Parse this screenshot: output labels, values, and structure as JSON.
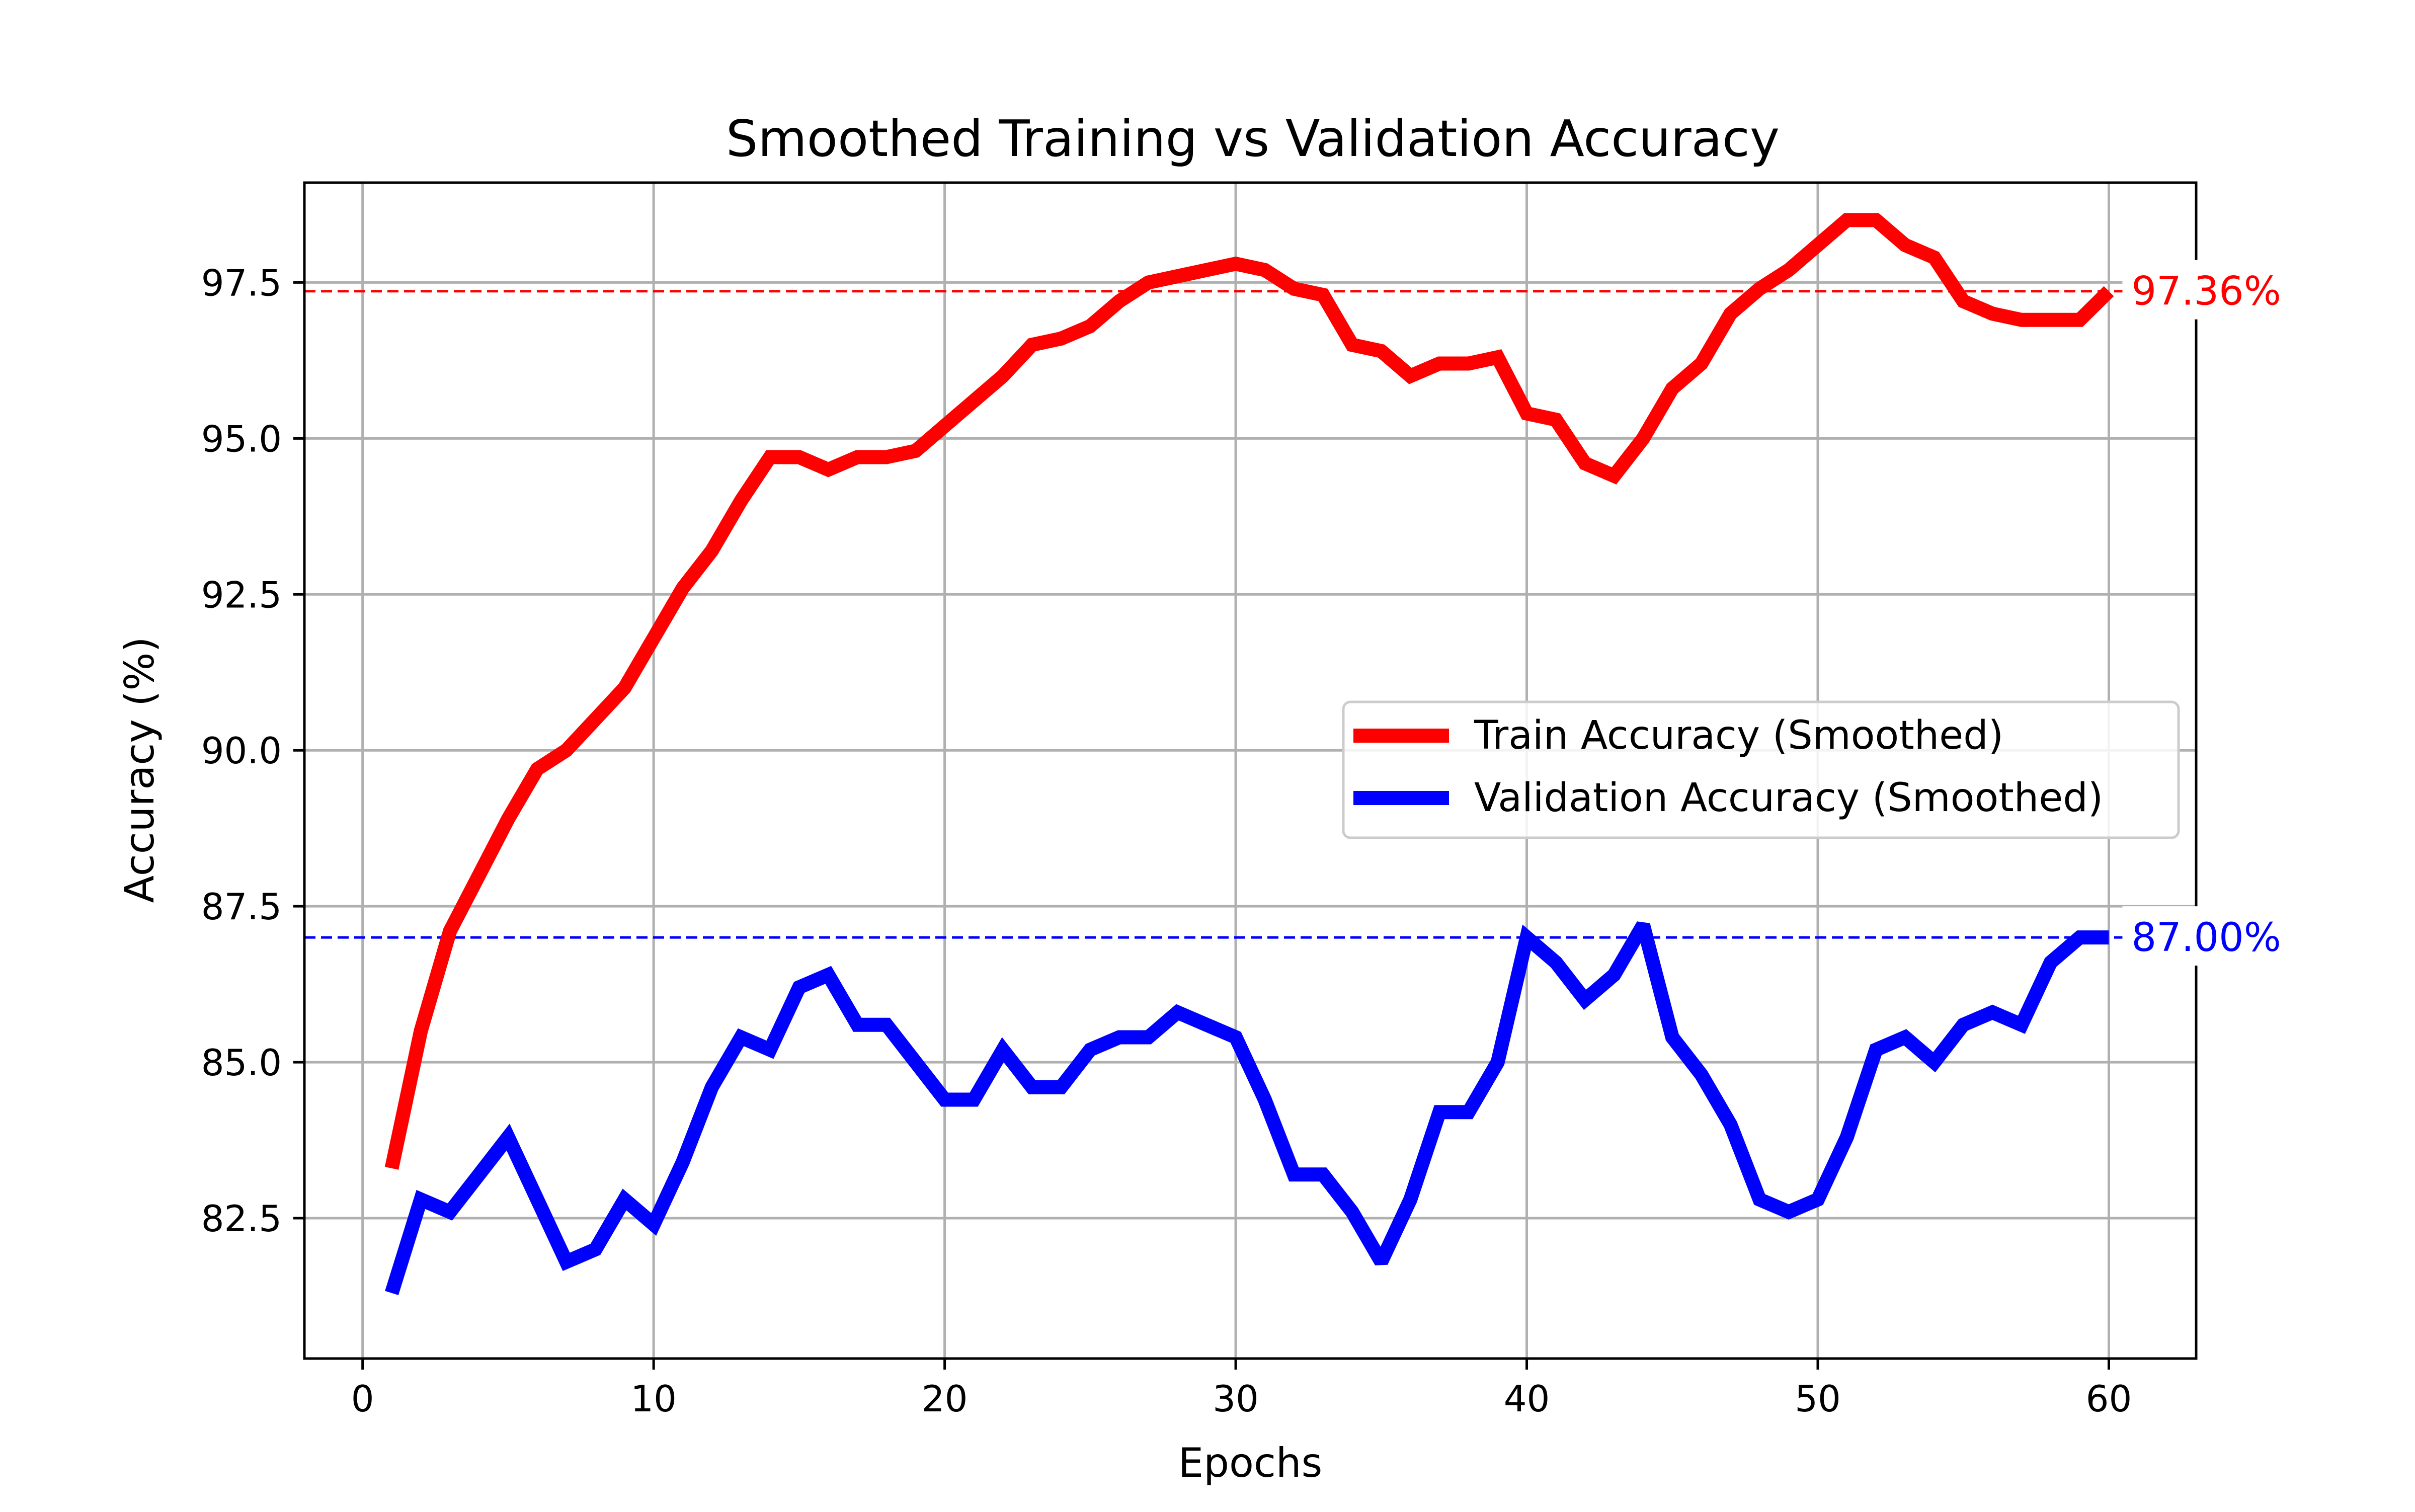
{
  "chart_data": {
    "type": "line",
    "title": "Smoothed Training vs Validation Accuracy",
    "xlabel": "Epochs",
    "ylabel": "Accuracy (%)",
    "xlim": [
      -2,
      63
    ],
    "ylim": [
      80.25,
      99.1
    ],
    "xticks": [
      0,
      10,
      20,
      30,
      40,
      50,
      60
    ],
    "xtick_labels": [
      "0",
      "10",
      "20",
      "30",
      "40",
      "50",
      "60"
    ],
    "yticks": [
      82.5,
      85.0,
      87.5,
      90.0,
      92.5,
      95.0,
      97.5
    ],
    "ytick_labels": [
      "82.5",
      "85.0",
      "87.5",
      "90.0",
      "92.5",
      "95.0",
      "97.5"
    ],
    "grid": true,
    "legend_position": "center-right",
    "x": [
      1,
      2,
      3,
      4,
      5,
      6,
      7,
      8,
      9,
      10,
      11,
      12,
      13,
      14,
      15,
      16,
      17,
      18,
      19,
      20,
      21,
      22,
      23,
      24,
      25,
      26,
      27,
      28,
      29,
      30,
      31,
      32,
      33,
      34,
      35,
      36,
      37,
      38,
      39,
      40,
      41,
      42,
      43,
      44,
      45,
      46,
      47,
      48,
      49,
      50,
      51,
      52,
      53,
      54,
      55,
      56,
      57,
      58,
      59,
      60
    ],
    "series": [
      {
        "name": "Train Accuracy (Smoothed)",
        "color": "#ff0000",
        "values": [
          83.3,
          85.5,
          87.1,
          88.0,
          88.9,
          89.7,
          90.0,
          90.5,
          91.0,
          91.8,
          92.6,
          93.2,
          94.0,
          94.7,
          94.7,
          94.5,
          94.7,
          94.7,
          94.8,
          95.2,
          95.6,
          96.0,
          96.5,
          96.6,
          96.8,
          97.2,
          97.5,
          97.6,
          97.7,
          97.8,
          97.7,
          97.4,
          97.3,
          96.5,
          96.4,
          96.0,
          96.2,
          96.2,
          96.3,
          95.4,
          95.3,
          94.6,
          94.4,
          95.0,
          95.8,
          96.2,
          97.0,
          97.4,
          97.7,
          98.1,
          98.5,
          98.5,
          98.1,
          97.9,
          97.2,
          97.0,
          96.9,
          96.9,
          96.9,
          97.36
        ]
      },
      {
        "name": "Validation Accuracy (Smoothed)",
        "color": "#0000ff",
        "values": [
          81.3,
          82.8,
          82.6,
          83.2,
          83.8,
          82.8,
          81.8,
          82.0,
          82.8,
          82.4,
          83.4,
          84.6,
          85.4,
          85.2,
          86.2,
          86.4,
          85.6,
          85.6,
          85.0,
          84.4,
          84.4,
          85.2,
          84.6,
          84.6,
          85.2,
          85.4,
          85.4,
          85.8,
          85.6,
          85.4,
          84.4,
          83.2,
          83.2,
          82.6,
          81.8,
          82.8,
          84.2,
          84.2,
          85.0,
          87.0,
          86.6,
          86.0,
          86.4,
          87.2,
          85.4,
          84.8,
          84.0,
          82.8,
          82.6,
          82.8,
          83.8,
          85.2,
          85.4,
          85.0,
          85.6,
          85.8,
          85.6,
          86.6,
          87.0,
          87.0
        ]
      }
    ],
    "reference_lines": [
      {
        "value": 97.36,
        "label": "97.36%",
        "color": "#ff0000"
      },
      {
        "value": 87.0,
        "label": "87.00%",
        "color": "#0000ff"
      }
    ]
  }
}
